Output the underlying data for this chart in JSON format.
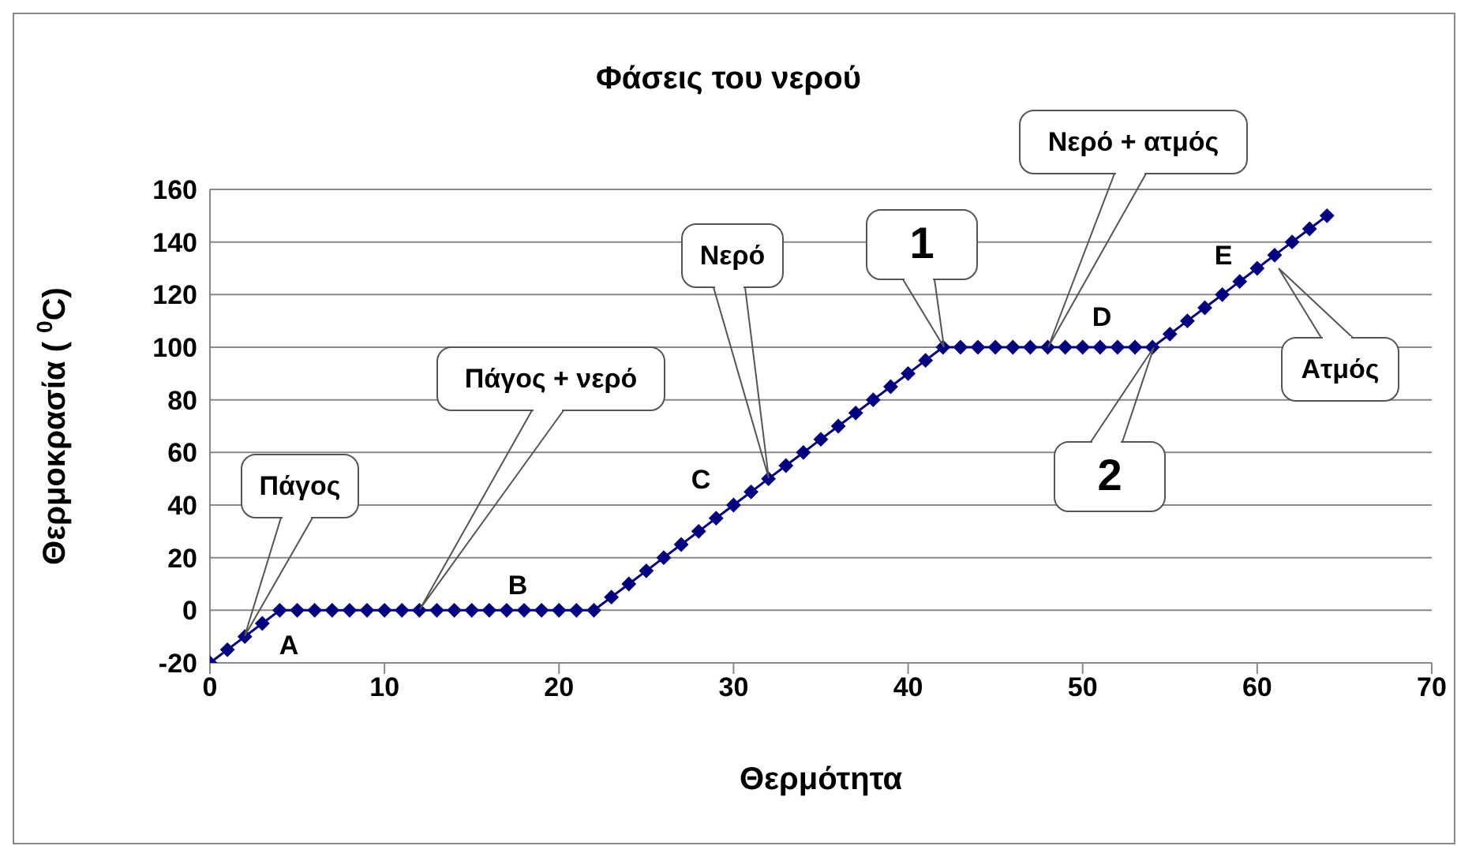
{
  "chart_data": {
    "type": "line",
    "title": "Φάσεις του νερού",
    "xlabel": "Θερμότητα",
    "ylabel": "Θερμοκρασία ( $^{0}$C)",
    "x": [
      0,
      1,
      2,
      3,
      4,
      5,
      6,
      7,
      8,
      9,
      10,
      11,
      12,
      13,
      14,
      15,
      16,
      17,
      18,
      19,
      20,
      21,
      22,
      23,
      24,
      25,
      26,
      27,
      28,
      29,
      30,
      31,
      32,
      33,
      34,
      35,
      36,
      37,
      38,
      39,
      40,
      41,
      42,
      43,
      44,
      45,
      46,
      47,
      48,
      49,
      50,
      51,
      52,
      53,
      54,
      55,
      56,
      57,
      58,
      59,
      60,
      61,
      62,
      63,
      64
    ],
    "series": [
      {
        "color": "#000080",
        "values": [
          -20,
          -15,
          -10,
          -5,
          0,
          0,
          0,
          0,
          0,
          0,
          0,
          0,
          0,
          0,
          0,
          0,
          0,
          0,
          0,
          0,
          0,
          0,
          0,
          5,
          10,
          15,
          20,
          25,
          30,
          35,
          40,
          45,
          50,
          55,
          60,
          65,
          70,
          75,
          80,
          85,
          90,
          95,
          100,
          100,
          100,
          100,
          100,
          100,
          100,
          100,
          100,
          100,
          100,
          100,
          100,
          105,
          110,
          115,
          120,
          125,
          130,
          135,
          140,
          145,
          150
        ]
      }
    ],
    "xlim": [
      0,
      70
    ],
    "xticks": [
      0,
      10,
      20,
      30,
      40,
      50,
      60,
      70
    ],
    "ylim": [
      -20,
      160
    ],
    "yticks": [
      -20,
      0,
      20,
      40,
      60,
      80,
      100,
      120,
      140,
      160
    ],
    "grid": "y",
    "marker": "diamond",
    "line_style": "solid",
    "legend": false,
    "annotations": [
      "Πάγος",
      "Πάγος + νερό",
      "Νερό",
      "1",
      "Νερό + ατμός",
      "2",
      "Ατμός",
      "A",
      "B",
      "C",
      "D",
      "E"
    ]
  }
}
